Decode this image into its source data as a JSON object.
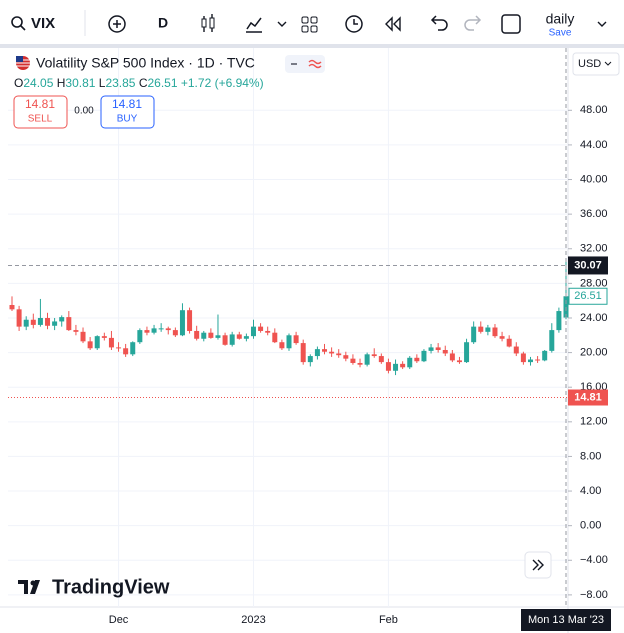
{
  "toolbar": {
    "symbol": "VIX",
    "interval": "D",
    "layout": "daily",
    "save": "Save"
  },
  "legend": {
    "title": "Volatility S&P 500 Index · 1D · TVC",
    "ohlc": [
      {
        "label": "O",
        "value": "24.05"
      },
      {
        "label": "H",
        "value": "30.81"
      },
      {
        "label": "L",
        "value": "23.85"
      },
      {
        "label": "C",
        "value": "26.51"
      }
    ],
    "change": "+1.72 (+6.94%)"
  },
  "trade": {
    "sell_price": "14.81",
    "sell": "SELL",
    "spread": "0.00",
    "buy_price": "14.81",
    "buy": "BUY"
  },
  "currency": "USD",
  "watermark": "TradingView",
  "chart_data": {
    "type": "candlestick",
    "categories": [
      null,
      null,
      null,
      null,
      null,
      null,
      null,
      null,
      null,
      null,
      null,
      null,
      null,
      null,
      null,
      "Dec",
      null,
      null,
      null,
      null,
      null,
      null,
      null,
      null,
      null,
      null,
      null,
      null,
      null,
      null,
      null,
      null,
      null,
      null,
      "2023",
      null,
      null,
      null,
      null,
      null,
      null,
      null,
      null,
      null,
      null,
      null,
      null,
      null,
      null,
      null,
      null,
      null,
      null,
      "Feb",
      null,
      null,
      null,
      null,
      null,
      null,
      null,
      null,
      null,
      null,
      null,
      null,
      null,
      null,
      null,
      null,
      null,
      null,
      null,
      null,
      null,
      null,
      null,
      null,
      null
    ],
    "ohlc": [
      [
        25.5,
        26.5,
        24.8,
        25.0
      ],
      [
        25.0,
        25.4,
        22.5,
        23.0
      ],
      [
        23.0,
        24.2,
        22.6,
        23.8
      ],
      [
        23.8,
        24.5,
        22.8,
        23.2
      ],
      [
        23.2,
        26.2,
        23.0,
        24.0
      ],
      [
        24.0,
        24.6,
        22.7,
        23.1
      ],
      [
        23.1,
        24.0,
        22.6,
        23.6
      ],
      [
        23.6,
        24.3,
        23.0,
        24.1
      ],
      [
        24.1,
        24.8,
        22.5,
        22.6
      ],
      [
        22.6,
        23.2,
        22.0,
        22.4
      ],
      [
        22.4,
        22.9,
        21.1,
        21.3
      ],
      [
        21.3,
        21.8,
        20.3,
        20.5
      ],
      [
        20.5,
        22.0,
        20.3,
        21.9
      ],
      [
        21.9,
        22.3,
        21.4,
        21.7
      ],
      [
        21.7,
        22.5,
        20.3,
        20.6
      ],
      [
        20.6,
        21.2,
        20.1,
        20.5
      ],
      [
        20.5,
        21.0,
        19.5,
        19.8
      ],
      [
        19.8,
        21.3,
        19.6,
        21.2
      ],
      [
        21.2,
        22.8,
        21.0,
        22.6
      ],
      [
        22.6,
        23.0,
        22.0,
        22.3
      ],
      [
        22.3,
        23.2,
        22.1,
        22.8
      ],
      [
        22.8,
        23.4,
        22.4,
        22.8
      ],
      [
        22.8,
        23.0,
        22.1,
        22.6
      ],
      [
        22.6,
        22.9,
        21.8,
        22.0
      ],
      [
        22.0,
        25.7,
        21.9,
        24.9
      ],
      [
        24.9,
        25.2,
        22.2,
        22.5
      ],
      [
        22.5,
        23.1,
        21.4,
        21.6
      ],
      [
        21.6,
        22.5,
        21.3,
        22.3
      ],
      [
        22.3,
        22.8,
        21.6,
        21.7
      ],
      [
        21.7,
        24.4,
        21.5,
        22.0
      ],
      [
        22.0,
        22.3,
        20.8,
        20.9
      ],
      [
        20.9,
        22.4,
        20.7,
        22.1
      ],
      [
        22.1,
        22.4,
        21.5,
        21.6
      ],
      [
        21.6,
        22.2,
        21.3,
        21.9
      ],
      [
        21.9,
        23.8,
        21.6,
        23.0
      ],
      [
        23.0,
        23.4,
        22.3,
        22.5
      ],
      [
        22.5,
        23.0,
        22.0,
        22.3
      ],
      [
        22.3,
        22.8,
        21.1,
        21.2
      ],
      [
        21.2,
        21.5,
        20.3,
        20.5
      ],
      [
        20.5,
        22.2,
        20.2,
        22.0
      ],
      [
        22.0,
        22.4,
        20.9,
        21.1
      ],
      [
        21.1,
        21.5,
        18.6,
        18.9
      ],
      [
        18.9,
        19.8,
        18.4,
        19.6
      ],
      [
        19.6,
        20.7,
        19.2,
        20.4
      ],
      [
        20.4,
        21.0,
        19.8,
        20.1
      ],
      [
        20.1,
        20.6,
        19.5,
        19.9
      ],
      [
        19.9,
        20.4,
        19.4,
        19.7
      ],
      [
        19.7,
        20.1,
        19.0,
        19.3
      ],
      [
        19.3,
        19.8,
        18.6,
        18.8
      ],
      [
        18.8,
        19.3,
        18.3,
        18.6
      ],
      [
        18.6,
        20.0,
        18.4,
        19.8
      ],
      [
        19.8,
        20.5,
        19.4,
        19.6
      ],
      [
        19.6,
        19.9,
        18.7,
        18.9
      ],
      [
        18.9,
        19.3,
        17.6,
        17.9
      ],
      [
        17.9,
        19.2,
        17.4,
        18.7
      ],
      [
        18.7,
        19.0,
        18.1,
        18.3
      ],
      [
        18.3,
        19.6,
        18.1,
        19.4
      ],
      [
        19.4,
        19.8,
        18.8,
        19.0
      ],
      [
        19.0,
        20.4,
        18.9,
        20.2
      ],
      [
        20.2,
        21.0,
        19.9,
        20.6
      ],
      [
        20.6,
        21.1,
        20.0,
        20.3
      ],
      [
        20.3,
        20.8,
        19.6,
        19.9
      ],
      [
        19.9,
        20.3,
        18.9,
        19.1
      ],
      [
        19.1,
        19.5,
        18.7,
        18.9
      ],
      [
        18.9,
        21.6,
        18.8,
        21.2
      ],
      [
        21.2,
        23.6,
        21.0,
        23.0
      ],
      [
        23.0,
        23.6,
        22.2,
        22.4
      ],
      [
        22.4,
        23.2,
        22.0,
        22.9
      ],
      [
        22.9,
        23.3,
        21.7,
        21.9
      ],
      [
        21.9,
        22.4,
        21.3,
        21.6
      ],
      [
        21.6,
        22.0,
        20.6,
        20.7
      ],
      [
        20.7,
        21.2,
        19.6,
        19.9
      ],
      [
        19.9,
        20.1,
        18.6,
        18.9
      ],
      [
        18.9,
        19.5,
        18.5,
        19.2
      ],
      [
        19.2,
        19.6,
        18.8,
        19.1
      ],
      [
        19.1,
        20.3,
        19.0,
        20.2
      ],
      [
        20.2,
        23.4,
        20.0,
        22.6
      ],
      [
        22.6,
        25.2,
        22.3,
        24.8
      ],
      [
        24.05,
        30.81,
        23.85,
        26.51
      ]
    ],
    "up_color": "#26a69a",
    "down_color": "#ef5350",
    "ylim": [
      -9.4,
      55.2
    ],
    "yticks": [
      {
        "value": -8,
        "label": "−8.00"
      },
      {
        "value": -4,
        "label": "−4.00"
      },
      {
        "value": 0,
        "label": "0.00"
      },
      {
        "value": 4,
        "label": "4.00"
      },
      {
        "value": 8,
        "label": "8.00"
      },
      {
        "value": 12,
        "label": "12.00"
      },
      {
        "value": 16,
        "label": "16.00"
      },
      {
        "value": 20,
        "label": "20.00"
      },
      {
        "value": 24,
        "label": "24.00"
      },
      {
        "value": 28,
        "label": "28.00"
      },
      {
        "value": 32,
        "label": "32.00"
      },
      {
        "value": 36,
        "label": "36.00"
      },
      {
        "value": 40,
        "label": "40.00"
      },
      {
        "value": 44,
        "label": "44.00"
      },
      {
        "value": 48,
        "label": "48.00"
      }
    ],
    "grid": true,
    "crosshair_price": 30.07,
    "crosshair_time": "Mon 13 Mar '23",
    "last_price": 26.51,
    "bid_line": 14.81
  }
}
